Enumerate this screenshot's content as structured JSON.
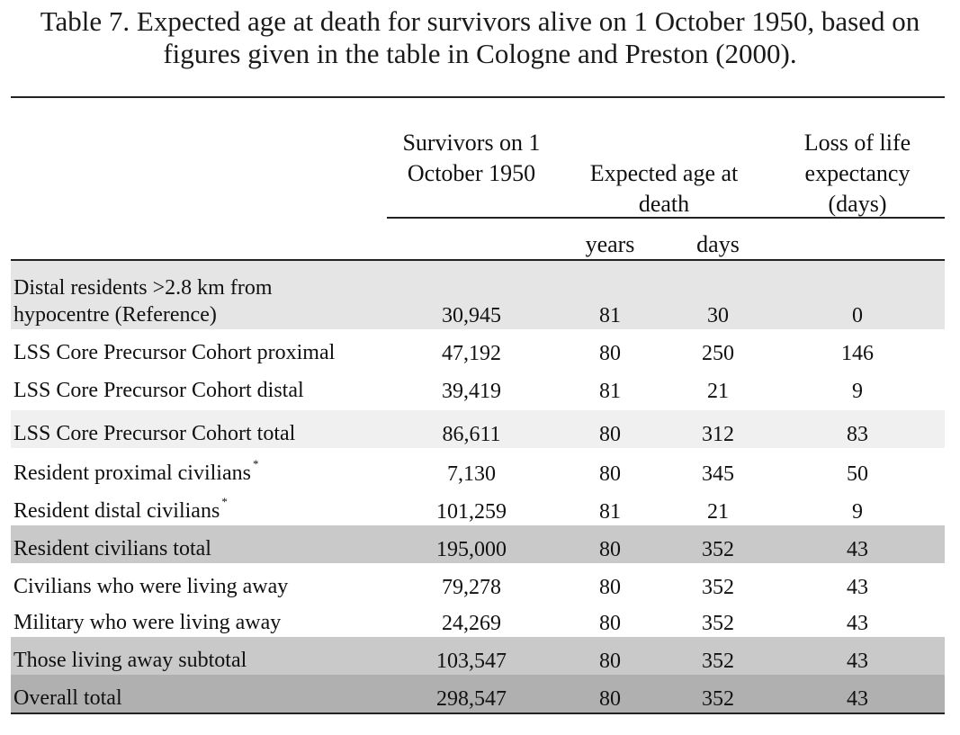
{
  "caption": {
    "line1": "Table 7. Expected age at death for survivors alive on 1 October 1950, based on",
    "line2": "figures given in the table in Cologne and Preston (2000)."
  },
  "headers": {
    "survivors": [
      "Survivors on 1",
      "October 1950"
    ],
    "expected_age": [
      "Expected age at",
      "death"
    ],
    "loss": [
      "Loss of life",
      "expectancy",
      "(days)"
    ],
    "years": "years",
    "days": "days"
  },
  "colors": {
    "light_band": "#e5e5e5",
    "mid_band": "#c9c9c9",
    "dark_band": "#b0b0b0"
  },
  "rows": [
    {
      "label_lines": [
        "Distal residents >2.8 km from",
        "hypocentre (Reference)"
      ],
      "survivors": "30,945",
      "years": "81",
      "days": "30",
      "loss": "0",
      "shade": "light"
    },
    {
      "label": "LSS Core Precursor Cohort proximal",
      "survivors": "47,192",
      "years": "80",
      "days": "250",
      "loss": "146",
      "shade": "none"
    },
    {
      "label": "LSS Core Precursor Cohort distal",
      "survivors": "39,419",
      "years": "81",
      "days": "21",
      "loss": "9",
      "shade": "none"
    },
    {
      "label": "LSS Core Precursor Cohort total",
      "survivors": "86,611",
      "years": "80",
      "days": "312",
      "loss": "83",
      "shade": "faint"
    },
    {
      "label": "Resident proximal civilians",
      "footnote": "*",
      "survivors": "7,130",
      "years": "80",
      "days": "345",
      "loss": "50",
      "shade": "none"
    },
    {
      "label": "Resident distal civilians",
      "footnote": "*",
      "survivors": "101,259",
      "years": "81",
      "days": "21",
      "loss": "9",
      "shade": "none"
    },
    {
      "label": "Resident civilians total",
      "survivors": "195,000",
      "years": "80",
      "days": "352",
      "loss": "43",
      "shade": "mid"
    },
    {
      "label": "Civilians who were living away",
      "survivors": "79,278",
      "years": "80",
      "days": "352",
      "loss": "43",
      "shade": "none"
    },
    {
      "label": "Military who were living away",
      "survivors": "24,269",
      "years": "80",
      "days": "352",
      "loss": "43",
      "shade": "none"
    },
    {
      "label": "Those living away subtotal",
      "survivors": "103,547",
      "years": "80",
      "days": "352",
      "loss": "43",
      "shade": "mid"
    },
    {
      "label": "Overall total",
      "survivors": "298,547",
      "years": "80",
      "days": "352",
      "loss": "43",
      "shade": "dark"
    }
  ]
}
